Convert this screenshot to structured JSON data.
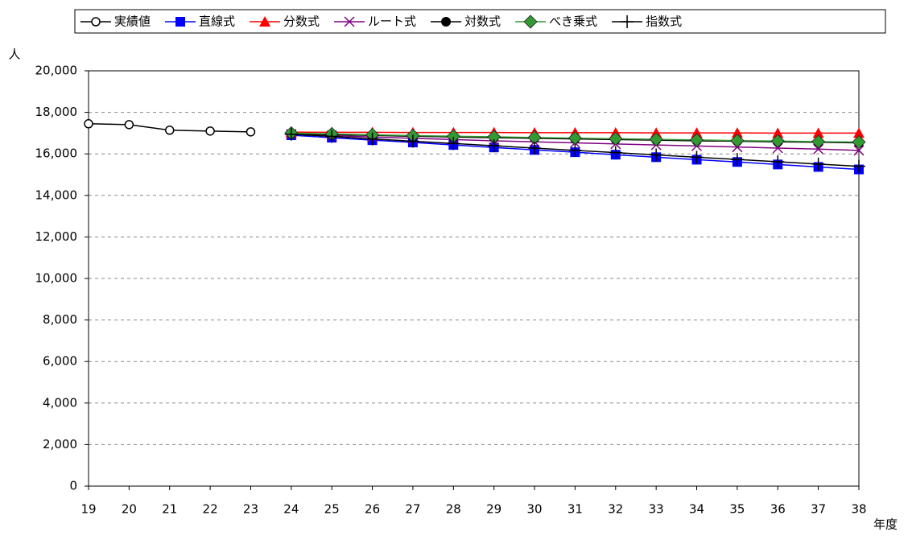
{
  "chart_data": {
    "type": "line",
    "y_label": "人",
    "x_label": "年度",
    "x": [
      19,
      20,
      21,
      22,
      23,
      24,
      25,
      26,
      27,
      28,
      29,
      30,
      31,
      32,
      33,
      34,
      35,
      36,
      37,
      38
    ],
    "xlim": [
      19,
      38
    ],
    "xticks": [
      19,
      20,
      21,
      22,
      23,
      24,
      25,
      26,
      27,
      28,
      29,
      30,
      31,
      32,
      33,
      34,
      35,
      36,
      37,
      38
    ],
    "ylim": [
      0,
      20000
    ],
    "yticks": [
      0,
      {
        "value": 2000,
        "label": "2,000"
      },
      {
        "value": 4000,
        "label": "4,000"
      },
      {
        "value": 6000,
        "label": "6,000"
      },
      {
        "value": 8000,
        "label": "8,000"
      },
      {
        "value": 10000,
        "label": "10,000"
      },
      {
        "value": 12000,
        "label": "12,000"
      },
      {
        "value": 14000,
        "label": "14,000"
      },
      {
        "value": 16000,
        "label": "16,000"
      },
      {
        "value": 18000,
        "label": "18,000"
      },
      {
        "value": 20000,
        "label": "20,000"
      }
    ],
    "grid": true,
    "legend": "top",
    "series": [
      {
        "name": "実績値",
        "color": "#000000",
        "marker": "open-circle",
        "values": [
          17450,
          17410,
          17140,
          17100,
          17060,
          null,
          null,
          null,
          null,
          null,
          null,
          null,
          null,
          null,
          null,
          null,
          null,
          null,
          null,
          null
        ]
      },
      {
        "name": "直線式",
        "color": "#0000ff",
        "marker": "square",
        "values": [
          null,
          null,
          null,
          null,
          null,
          16900,
          16780,
          16660,
          16550,
          16430,
          16310,
          16190,
          16080,
          15960,
          15840,
          15720,
          15610,
          15490,
          15370,
          15250
        ]
      },
      {
        "name": "分数式",
        "color": "#ff0000",
        "marker": "triangle",
        "values": [
          null,
          null,
          null,
          null,
          null,
          17050,
          17040,
          17040,
          17030,
          17030,
          17030,
          17020,
          17020,
          17020,
          17010,
          17010,
          17010,
          17000,
          17000,
          17000
        ]
      },
      {
        "name": "ルート式",
        "color": "#800080",
        "marker": "cross",
        "values": [
          null,
          null,
          null,
          null,
          null,
          16950,
          16880,
          16810,
          16750,
          16690,
          16630,
          16580,
          16530,
          16480,
          16430,
          16380,
          16330,
          16280,
          16230,
          16170
        ]
      },
      {
        "name": "対数式",
        "color": "#000000",
        "marker": "circle",
        "values": [
          null,
          null,
          null,
          null,
          null,
          16980,
          16930,
          16890,
          16850,
          16810,
          16780,
          16750,
          16720,
          16690,
          16660,
          16630,
          16610,
          16580,
          16560,
          16530
        ]
      },
      {
        "name": "べき乗式",
        "color": "#339933",
        "marker": "diamond",
        "values": [
          null,
          null,
          null,
          null,
          null,
          17000,
          16960,
          16920,
          16880,
          16850,
          16820,
          16790,
          16760,
          16730,
          16700,
          16670,
          16640,
          16620,
          16590,
          16570
        ]
      },
      {
        "name": "指数式",
        "color": "#000000",
        "marker": "plus",
        "values": [
          null,
          null,
          null,
          null,
          null,
          16950,
          16840,
          16720,
          16610,
          16500,
          16390,
          16280,
          16170,
          16060,
          15950,
          15840,
          15730,
          15620,
          15510,
          15400
        ]
      }
    ]
  }
}
